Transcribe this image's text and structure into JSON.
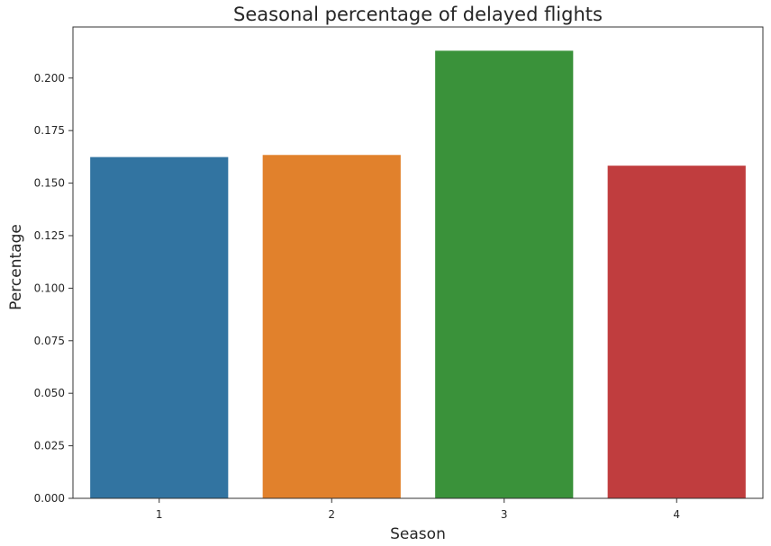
{
  "chart_data": {
    "type": "bar",
    "title": "Seasonal percentage of delayed flights",
    "xlabel": "Season",
    "ylabel": "Percentage",
    "categories": [
      "1",
      "2",
      "3",
      "4"
    ],
    "values": [
      0.1624,
      0.1634,
      0.213,
      0.1583
    ],
    "colors": [
      "#3274a1",
      "#e1812c",
      "#3a923a",
      "#c03d3e"
    ],
    "ylim": [
      0,
      0.2243
    ],
    "yticks": [
      0.0,
      0.025,
      0.05,
      0.075,
      0.1,
      0.125,
      0.15,
      0.175,
      0.2
    ],
    "ytick_labels": [
      "0.000",
      "0.025",
      "0.050",
      "0.075",
      "0.100",
      "0.125",
      "0.150",
      "0.175",
      "0.200"
    ],
    "grid": false,
    "legend": "none"
  }
}
